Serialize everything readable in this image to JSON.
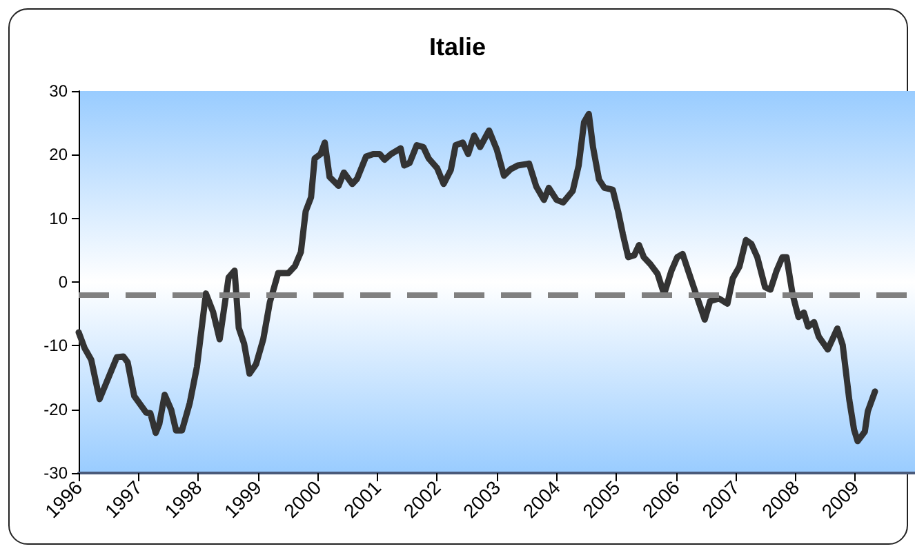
{
  "chart_data": {
    "type": "line",
    "title": "Italie",
    "x": [
      1996.0,
      1996.1,
      1996.21,
      1996.35,
      1996.64,
      1996.75,
      1996.82,
      1996.93,
      1997.13,
      1997.2,
      1997.29,
      1997.35,
      1997.44,
      1997.55,
      1997.63,
      1997.73,
      1997.86,
      1997.98,
      1998.13,
      1998.25,
      1998.36,
      1998.51,
      1998.61,
      1998.68,
      1998.77,
      1998.86,
      1998.97,
      1999.09,
      1999.2,
      1999.34,
      1999.51,
      1999.62,
      1999.72,
      1999.8,
      1999.89,
      1999.95,
      2000.05,
      2000.12,
      2000.2,
      2000.35,
      2000.44,
      2000.58,
      2000.66,
      2000.81,
      2000.93,
      2001.04,
      2001.12,
      2001.23,
      2001.39,
      2001.45,
      2001.54,
      2001.66,
      2001.77,
      2001.86,
      2002.0,
      2002.11,
      2002.23,
      2002.31,
      2002.43,
      2002.52,
      2002.62,
      2002.72,
      2002.87,
      2003.0,
      2003.12,
      2003.23,
      2003.35,
      2003.54,
      2003.66,
      2003.79,
      2003.87,
      2004.0,
      2004.11,
      2004.27,
      2004.37,
      2004.46,
      2004.54,
      2004.61,
      2004.71,
      2004.8,
      2004.94,
      2005.03,
      2005.11,
      2005.2,
      2005.3,
      2005.38,
      2005.46,
      2005.57,
      2005.69,
      2005.8,
      2005.92,
      2006.02,
      2006.11,
      2006.22,
      2006.36,
      2006.48,
      2006.57,
      2006.72,
      2006.86,
      2006.95,
      2007.06,
      2007.17,
      2007.26,
      2007.36,
      2007.49,
      2007.58,
      2007.68,
      2007.78,
      2007.85,
      2007.95,
      2008.05,
      2008.14,
      2008.21,
      2008.31,
      2008.39,
      2008.54,
      2008.7,
      2008.79,
      2008.9,
      2008.98,
      2009.04,
      2009.16,
      2009.21,
      2009.33
    ],
    "series": [
      {
        "color": "#333333",
        "values": [
          -7.9,
          -10.4,
          -12.2,
          -18.4,
          -11.8,
          -11.7,
          -12.6,
          -17.9,
          -20.5,
          -20.6,
          -23.7,
          -22.3,
          -17.7,
          -20.1,
          -23.3,
          -23.3,
          -19.0,
          -13.3,
          -1.8,
          -4.7,
          -9.0,
          0.7,
          1.8,
          -7.2,
          -9.7,
          -14.4,
          -12.9,
          -9.0,
          -3.2,
          1.4,
          1.4,
          2.5,
          4.7,
          11.1,
          13.3,
          19.4,
          20.1,
          21.9,
          16.5,
          15.1,
          17.2,
          15.4,
          16.2,
          19.7,
          20.1,
          20.1,
          19.2,
          20.1,
          21.0,
          18.3,
          18.7,
          21.5,
          21.2,
          19.4,
          17.9,
          15.4,
          17.6,
          21.5,
          21.9,
          20.1,
          23.0,
          21.2,
          23.8,
          20.8,
          16.7,
          17.7,
          18.3,
          18.6,
          15.0,
          12.9,
          14.8,
          12.9,
          12.5,
          14.3,
          18.3,
          25.1,
          26.4,
          21.2,
          16.1,
          14.8,
          14.5,
          11.1,
          7.5,
          3.9,
          4.2,
          5.8,
          3.9,
          2.8,
          1.3,
          -1.9,
          1.7,
          3.9,
          4.4,
          1.3,
          -2.6,
          -5.9,
          -3.0,
          -2.6,
          -3.4,
          0.6,
          2.4,
          6.6,
          6.0,
          3.9,
          -0.8,
          -1.2,
          1.7,
          3.9,
          3.9,
          -1.9,
          -5.5,
          -4.8,
          -7.0,
          -6.3,
          -8.6,
          -10.6,
          -7.3,
          -9.9,
          -18.5,
          -23.2,
          -25.0,
          -23.5,
          -20.3,
          -17.2
        ]
      }
    ],
    "xlim": [
      1996,
      2010
    ],
    "xticks": [
      1996,
      1997,
      1998,
      1999,
      2000,
      2001,
      2002,
      2003,
      2004,
      2005,
      2006,
      2007,
      2008,
      2009
    ],
    "ylim": [
      -30,
      30
    ],
    "yticks": [
      -30,
      -20,
      -10,
      0,
      10,
      20,
      30
    ],
    "ref_lines": [
      {
        "axis": "y",
        "value": -2,
        "color": "#808080",
        "line_style": "dashed"
      }
    ],
    "grid": false,
    "marker": "none",
    "line_style": "solid"
  }
}
